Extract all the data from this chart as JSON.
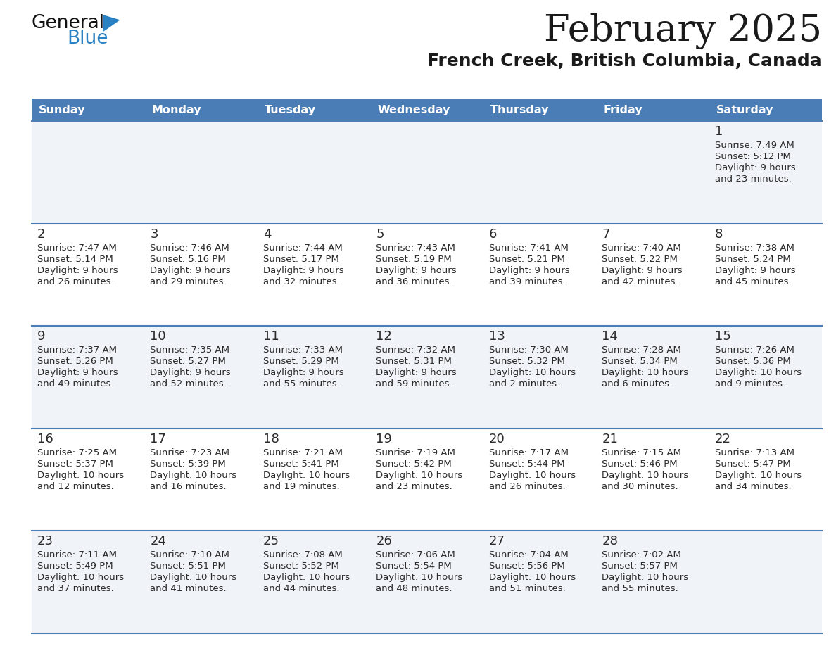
{
  "title": "February 2025",
  "subtitle": "French Creek, British Columbia, Canada",
  "days_of_week": [
    "Sunday",
    "Monday",
    "Tuesday",
    "Wednesday",
    "Thursday",
    "Friday",
    "Saturday"
  ],
  "header_bg": "#4a7db5",
  "header_text": "#ffffff",
  "row_bg_odd": "#f0f4f8",
  "row_bg_even": "#ffffff",
  "separator_color": "#4a7db5",
  "text_color": "#2a2a2a",
  "logo_text_color": "#1a1a1a",
  "logo_blue_color": "#2a82c4",
  "title_color": "#1a1a1a",
  "subtitle_color": "#1a1a1a",
  "calendar_data": [
    {
      "day": 1,
      "col": 6,
      "row": 0,
      "sunrise": "7:49 AM",
      "sunset": "5:12 PM",
      "daylight_h": "9 hours",
      "daylight_m": "and 23 minutes."
    },
    {
      "day": 2,
      "col": 0,
      "row": 1,
      "sunrise": "7:47 AM",
      "sunset": "5:14 PM",
      "daylight_h": "9 hours",
      "daylight_m": "and 26 minutes."
    },
    {
      "day": 3,
      "col": 1,
      "row": 1,
      "sunrise": "7:46 AM",
      "sunset": "5:16 PM",
      "daylight_h": "9 hours",
      "daylight_m": "and 29 minutes."
    },
    {
      "day": 4,
      "col": 2,
      "row": 1,
      "sunrise": "7:44 AM",
      "sunset": "5:17 PM",
      "daylight_h": "9 hours",
      "daylight_m": "and 32 minutes."
    },
    {
      "day": 5,
      "col": 3,
      "row": 1,
      "sunrise": "7:43 AM",
      "sunset": "5:19 PM",
      "daylight_h": "9 hours",
      "daylight_m": "and 36 minutes."
    },
    {
      "day": 6,
      "col": 4,
      "row": 1,
      "sunrise": "7:41 AM",
      "sunset": "5:21 PM",
      "daylight_h": "9 hours",
      "daylight_m": "and 39 minutes."
    },
    {
      "day": 7,
      "col": 5,
      "row": 1,
      "sunrise": "7:40 AM",
      "sunset": "5:22 PM",
      "daylight_h": "9 hours",
      "daylight_m": "and 42 minutes."
    },
    {
      "day": 8,
      "col": 6,
      "row": 1,
      "sunrise": "7:38 AM",
      "sunset": "5:24 PM",
      "daylight_h": "9 hours",
      "daylight_m": "and 45 minutes."
    },
    {
      "day": 9,
      "col": 0,
      "row": 2,
      "sunrise": "7:37 AM",
      "sunset": "5:26 PM",
      "daylight_h": "9 hours",
      "daylight_m": "and 49 minutes."
    },
    {
      "day": 10,
      "col": 1,
      "row": 2,
      "sunrise": "7:35 AM",
      "sunset": "5:27 PM",
      "daylight_h": "9 hours",
      "daylight_m": "and 52 minutes."
    },
    {
      "day": 11,
      "col": 2,
      "row": 2,
      "sunrise": "7:33 AM",
      "sunset": "5:29 PM",
      "daylight_h": "9 hours",
      "daylight_m": "and 55 minutes."
    },
    {
      "day": 12,
      "col": 3,
      "row": 2,
      "sunrise": "7:32 AM",
      "sunset": "5:31 PM",
      "daylight_h": "9 hours",
      "daylight_m": "and 59 minutes."
    },
    {
      "day": 13,
      "col": 4,
      "row": 2,
      "sunrise": "7:30 AM",
      "sunset": "5:32 PM",
      "daylight_h": "10 hours",
      "daylight_m": "and 2 minutes."
    },
    {
      "day": 14,
      "col": 5,
      "row": 2,
      "sunrise": "7:28 AM",
      "sunset": "5:34 PM",
      "daylight_h": "10 hours",
      "daylight_m": "and 6 minutes."
    },
    {
      "day": 15,
      "col": 6,
      "row": 2,
      "sunrise": "7:26 AM",
      "sunset": "5:36 PM",
      "daylight_h": "10 hours",
      "daylight_m": "and 9 minutes."
    },
    {
      "day": 16,
      "col": 0,
      "row": 3,
      "sunrise": "7:25 AM",
      "sunset": "5:37 PM",
      "daylight_h": "10 hours",
      "daylight_m": "and 12 minutes."
    },
    {
      "day": 17,
      "col": 1,
      "row": 3,
      "sunrise": "7:23 AM",
      "sunset": "5:39 PM",
      "daylight_h": "10 hours",
      "daylight_m": "and 16 minutes."
    },
    {
      "day": 18,
      "col": 2,
      "row": 3,
      "sunrise": "7:21 AM",
      "sunset": "5:41 PM",
      "daylight_h": "10 hours",
      "daylight_m": "and 19 minutes."
    },
    {
      "day": 19,
      "col": 3,
      "row": 3,
      "sunrise": "7:19 AM",
      "sunset": "5:42 PM",
      "daylight_h": "10 hours",
      "daylight_m": "and 23 minutes."
    },
    {
      "day": 20,
      "col": 4,
      "row": 3,
      "sunrise": "7:17 AM",
      "sunset": "5:44 PM",
      "daylight_h": "10 hours",
      "daylight_m": "and 26 minutes."
    },
    {
      "day": 21,
      "col": 5,
      "row": 3,
      "sunrise": "7:15 AM",
      "sunset": "5:46 PM",
      "daylight_h": "10 hours",
      "daylight_m": "and 30 minutes."
    },
    {
      "day": 22,
      "col": 6,
      "row": 3,
      "sunrise": "7:13 AM",
      "sunset": "5:47 PM",
      "daylight_h": "10 hours",
      "daylight_m": "and 34 minutes."
    },
    {
      "day": 23,
      "col": 0,
      "row": 4,
      "sunrise": "7:11 AM",
      "sunset": "5:49 PM",
      "daylight_h": "10 hours",
      "daylight_m": "and 37 minutes."
    },
    {
      "day": 24,
      "col": 1,
      "row": 4,
      "sunrise": "7:10 AM",
      "sunset": "5:51 PM",
      "daylight_h": "10 hours",
      "daylight_m": "and 41 minutes."
    },
    {
      "day": 25,
      "col": 2,
      "row": 4,
      "sunrise": "7:08 AM",
      "sunset": "5:52 PM",
      "daylight_h": "10 hours",
      "daylight_m": "and 44 minutes."
    },
    {
      "day": 26,
      "col": 3,
      "row": 4,
      "sunrise": "7:06 AM",
      "sunset": "5:54 PM",
      "daylight_h": "10 hours",
      "daylight_m": "and 48 minutes."
    },
    {
      "day": 27,
      "col": 4,
      "row": 4,
      "sunrise": "7:04 AM",
      "sunset": "5:56 PM",
      "daylight_h": "10 hours",
      "daylight_m": "and 51 minutes."
    },
    {
      "day": 28,
      "col": 5,
      "row": 4,
      "sunrise": "7:02 AM",
      "sunset": "5:57 PM",
      "daylight_h": "10 hours",
      "daylight_m": "and 55 minutes."
    }
  ]
}
